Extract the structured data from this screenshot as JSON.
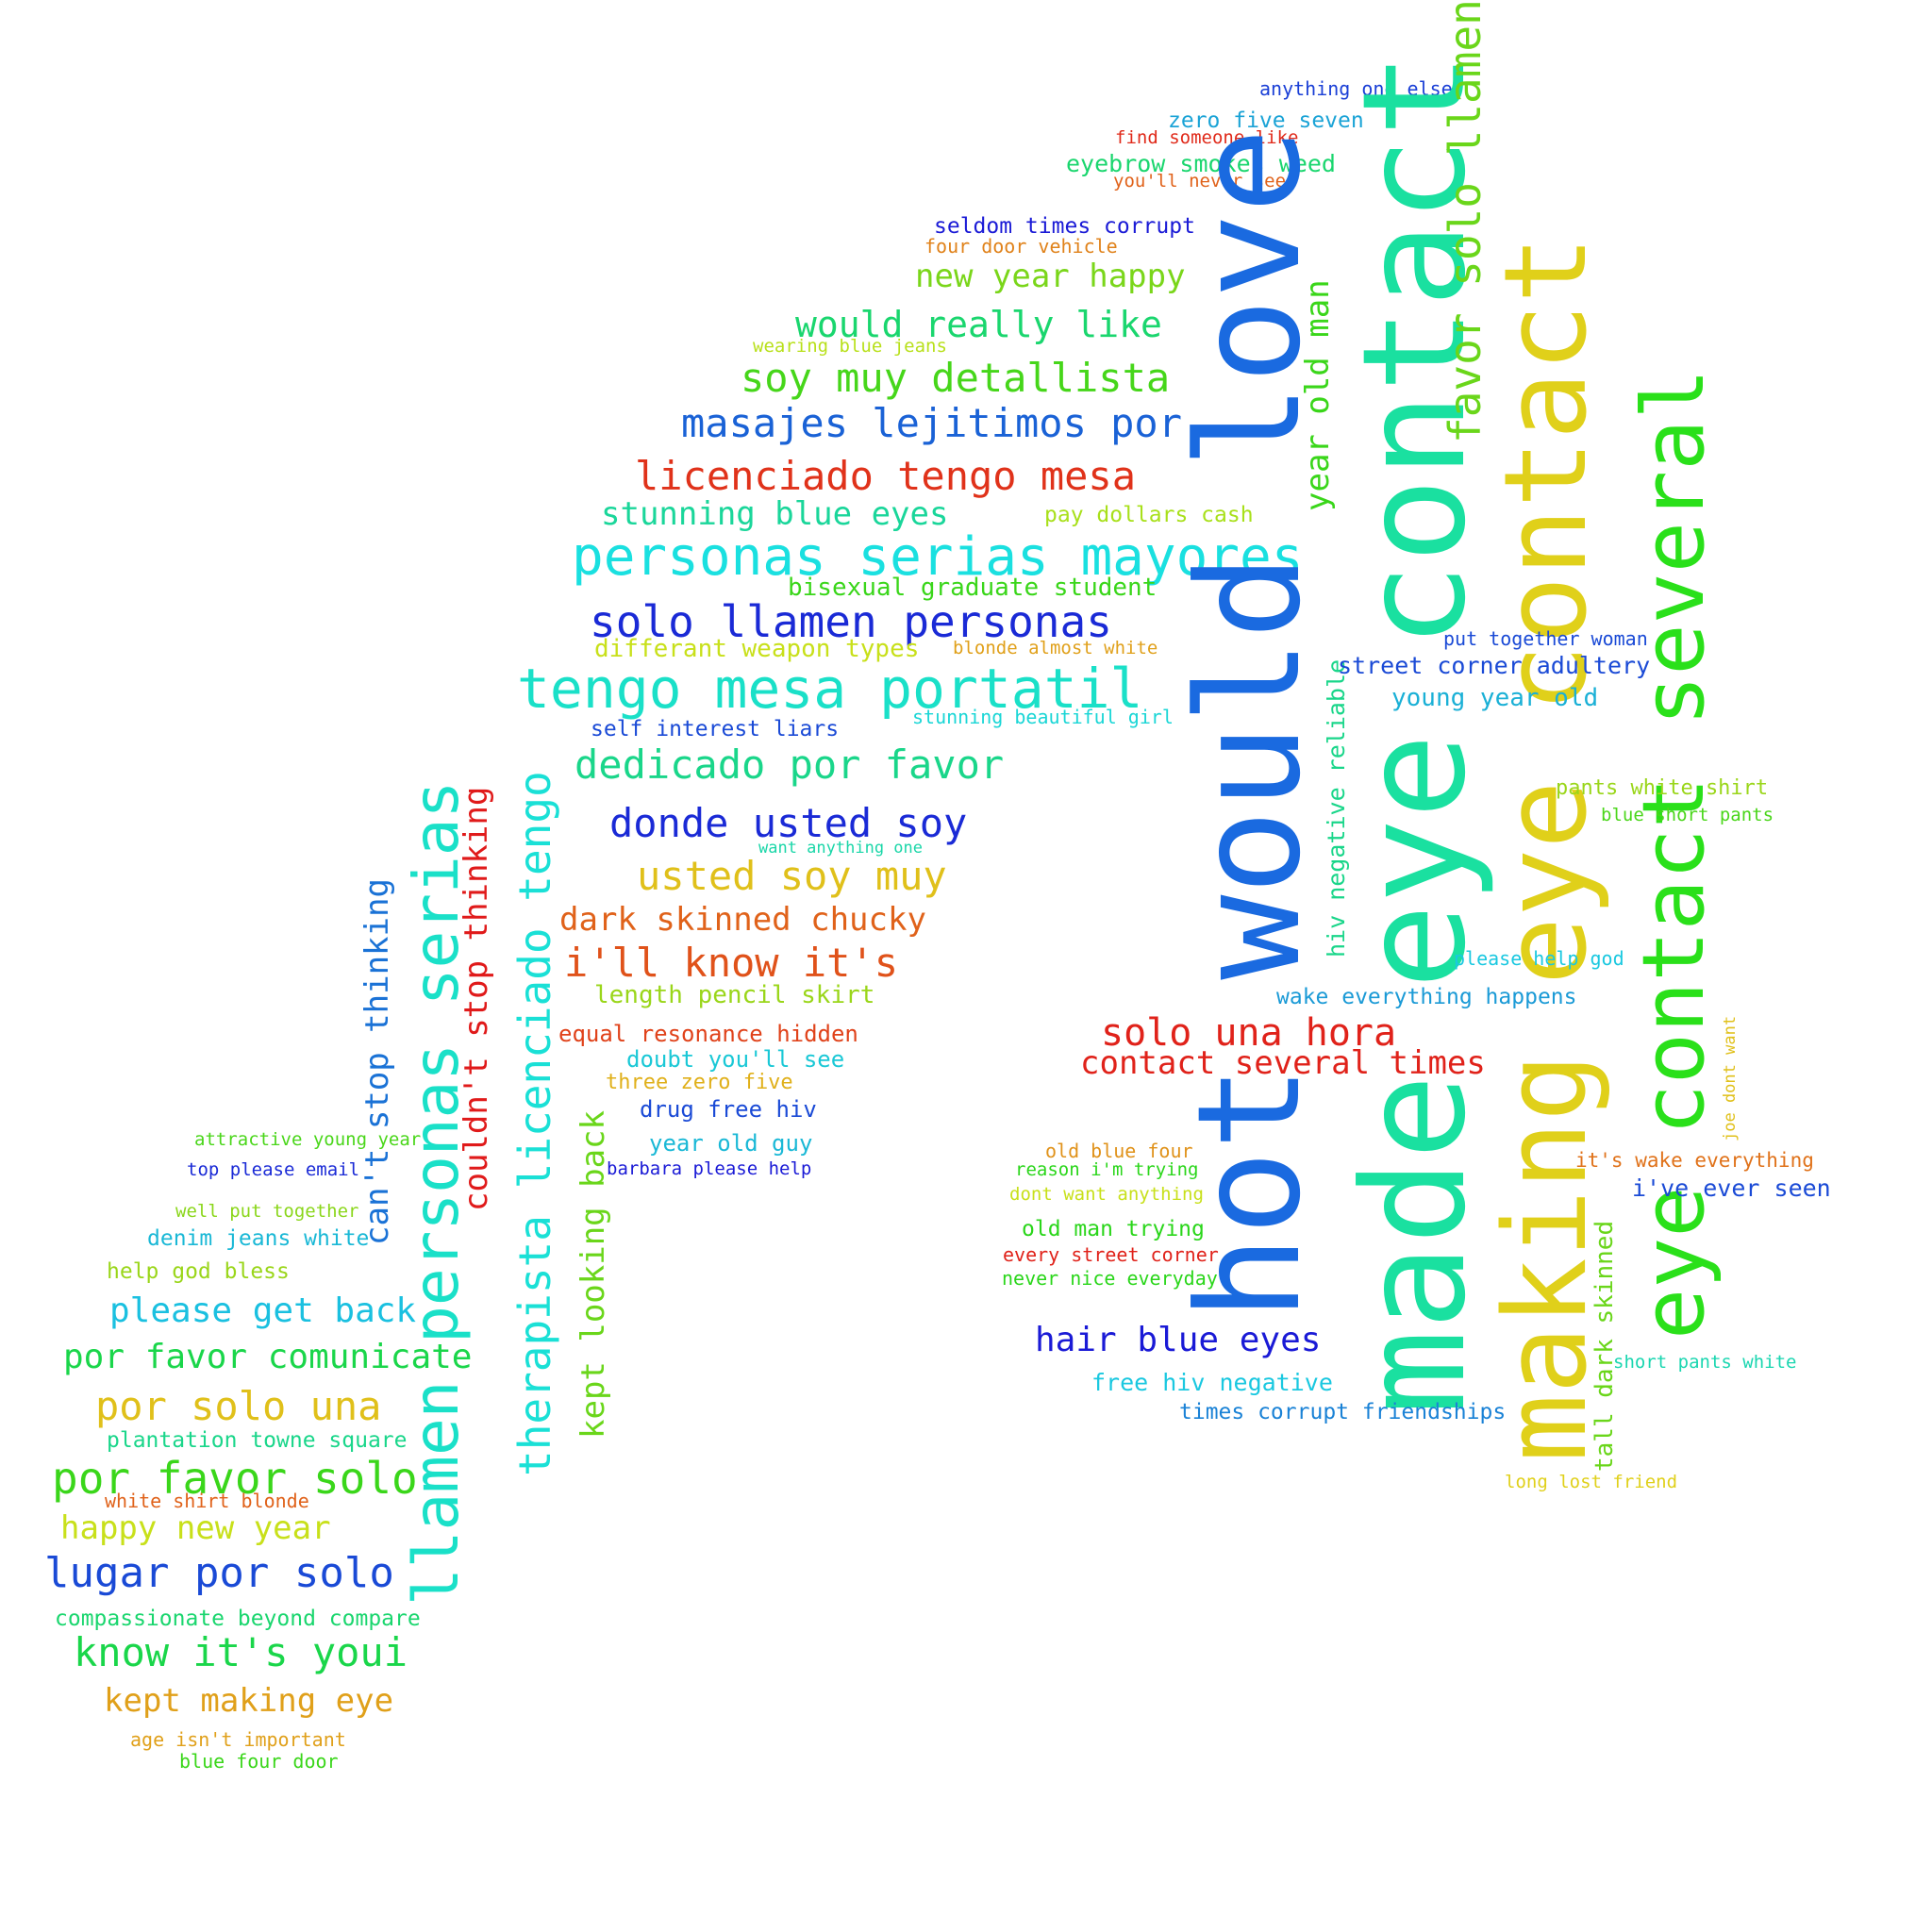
{
  "words": [
    {
      "text": "anything one else",
      "color": "#1a3fd6"
    },
    {
      "text": "zero five seven",
      "color": "#1aa3d6"
    },
    {
      "text": "find someone like",
      "color": "#e02a1a"
    },
    {
      "text": "eyebrow smokes weed",
      "color": "#1ad66e"
    },
    {
      "text": "you'll never see",
      "color": "#e0621a"
    },
    {
      "text": "seldom times corrupt",
      "color": "#1a1ad6"
    },
    {
      "text": "four door vehicle",
      "color": "#e0821a"
    },
    {
      "text": "new year happy",
      "color": "#7ad61a"
    },
    {
      "text": "would really like",
      "color": "#1ad66e"
    },
    {
      "text": "wearing blue jeans",
      "color": "#b8e01a"
    },
    {
      "text": "soy muy detallista",
      "color": "#46d61a"
    },
    {
      "text": "masajes lejitimos por",
      "color": "#1a62d6"
    },
    {
      "text": "licenciado tengo mesa",
      "color": "#e0321a"
    },
    {
      "text": "stunning blue eyes",
      "color": "#1ad69a"
    },
    {
      "text": "pay dollars cash",
      "color": "#a8e01a"
    },
    {
      "text": "personas serias mayores",
      "color": "#1ae0e0"
    },
    {
      "text": "bisexual graduate student",
      "color": "#3ad61a"
    },
    {
      "text": "solo llamen personas",
      "color": "#1a2ad6"
    },
    {
      "text": "differant weapon types",
      "color": "#c8e01a"
    },
    {
      "text": "blonde almost white",
      "color": "#e0a01a"
    },
    {
      "text": "tengo mesa portatil",
      "color": "#1ae0c8"
    },
    {
      "text": "self interest liars",
      "color": "#1a4ad6"
    },
    {
      "text": "stunning beautiful girl",
      "color": "#1ad6d6"
    },
    {
      "text": "dedicado por favor",
      "color": "#1ad68a"
    },
    {
      "text": "donde usted soy",
      "color": "#1a2ad6"
    },
    {
      "text": "want anything one",
      "color": "#1ad6a8"
    },
    {
      "text": "usted soy muy",
      "color": "#e0c01a"
    },
    {
      "text": "dark skinned chucky",
      "color": "#e0621a"
    },
    {
      "text": "i'll know it's",
      "color": "#e0521a"
    },
    {
      "text": "length pencil skirt",
      "color": "#9ad61a"
    },
    {
      "text": "equal resonance hidden",
      "color": "#e0421a"
    },
    {
      "text": "doubt you'll see",
      "color": "#1ac8d6"
    },
    {
      "text": "three zero five",
      "color": "#e0b01a"
    },
    {
      "text": "drug free hiv",
      "color": "#1a4ad6"
    },
    {
      "text": "year old guy",
      "color": "#1ab8d6"
    },
    {
      "text": "barbara please help",
      "color": "#1a1ad6"
    },
    {
      "text": "attractive young year",
      "color": "#4ad61a"
    },
    {
      "text": "top please email",
      "color": "#1a2ad6"
    },
    {
      "text": "well put together",
      "color": "#8ad61a"
    },
    {
      "text": "denim jeans white",
      "color": "#1ab8d6"
    },
    {
      "text": "help god bless",
      "color": "#9ad61a"
    },
    {
      "text": "please get back",
      "color": "#1ac0e0"
    },
    {
      "text": "por favor comunicate",
      "color": "#1ad64a"
    },
    {
      "text": "por solo una",
      "color": "#e0c01a"
    },
    {
      "text": "plantation towne square",
      "color": "#1ad68a"
    },
    {
      "text": "por favor solo",
      "color": "#3ad61a"
    },
    {
      "text": "white shirt blonde",
      "color": "#e0621a"
    },
    {
      "text": "happy new year",
      "color": "#c8e01a"
    },
    {
      "text": "lugar por solo",
      "color": "#1a4ad6"
    },
    {
      "text": "compassionate beyond compare",
      "color": "#1ad66e"
    },
    {
      "text": "know it's youi",
      "color": "#1ad64a"
    },
    {
      "text": "kept making eye",
      "color": "#e0a01a"
    },
    {
      "text": "age isn't important",
      "color": "#e0a01a"
    },
    {
      "text": "blue four door",
      "color": "#3ad61a"
    },
    {
      "text": "llamen personas serias",
      "color": "#1ae0c8"
    },
    {
      "text": "couldn't stop thinking",
      "color": "#e01a1a"
    },
    {
      "text": "can't stop thinking",
      "color": "#1a72d6"
    },
    {
      "text": "therapista licenciado tengo",
      "color": "#1ae0d6"
    },
    {
      "text": "kept looking back",
      "color": "#6ad61a"
    },
    {
      "text": "hot would love",
      "color": "#1a6ae0"
    },
    {
      "text": "made eye contact",
      "color": "#1ae0a0"
    },
    {
      "text": "making eye contact",
      "color": "#e0d01a"
    },
    {
      "text": "eye contact several",
      "color": "#2ae01a"
    },
    {
      "text": "favor solo llamen",
      "color": "#6ad61a"
    },
    {
      "text": "year old man",
      "color": "#3ad61a"
    },
    {
      "text": "hiv negative reliable",
      "color": "#1ad68a"
    },
    {
      "text": "tall dark skinned",
      "color": "#6ad61a"
    },
    {
      "text": "joe dont want",
      "color": "#e0c01a"
    },
    {
      "text": "put together woman",
      "color": "#1a4ad6"
    },
    {
      "text": "street corner adultery",
      "color": "#1a4ad6"
    },
    {
      "text": "young year old",
      "color": "#1ab0d6"
    },
    {
      "text": "pants white shirt",
      "color": "#9ad61a"
    },
    {
      "text": "blue short pants",
      "color": "#4ad61a"
    },
    {
      "text": "please help god",
      "color": "#1ac8e0"
    },
    {
      "text": "wake everything happens",
      "color": "#1a9ad6"
    },
    {
      "text": "solo una hora",
      "color": "#e0221a"
    },
    {
      "text": "contact several times",
      "color": "#e0221a"
    },
    {
      "text": "old blue four",
      "color": "#e0921a"
    },
    {
      "text": "reason i'm trying",
      "color": "#2ad61a"
    },
    {
      "text": "it's wake everything",
      "color": "#e0721a"
    },
    {
      "text": "i've ever seen",
      "color": "#1a4ad6"
    },
    {
      "text": "dont want anything",
      "color": "#c8e01a"
    },
    {
      "text": "old man trying",
      "color": "#2ad61a"
    },
    {
      "text": "every street corner",
      "color": "#e0221a"
    },
    {
      "text": "never nice everyday",
      "color": "#2ad61a"
    },
    {
      "text": "hair blue eyes",
      "color": "#1a1ad6"
    },
    {
      "text": "short pants white",
      "color": "#1ad6b0"
    },
    {
      "text": "free hiv negative",
      "color": "#1ac8e0"
    },
    {
      "text": "times corrupt friendships",
      "color": "#1a82d6"
    },
    {
      "text": "long lost friend",
      "color": "#e0d01a"
    }
  ]
}
